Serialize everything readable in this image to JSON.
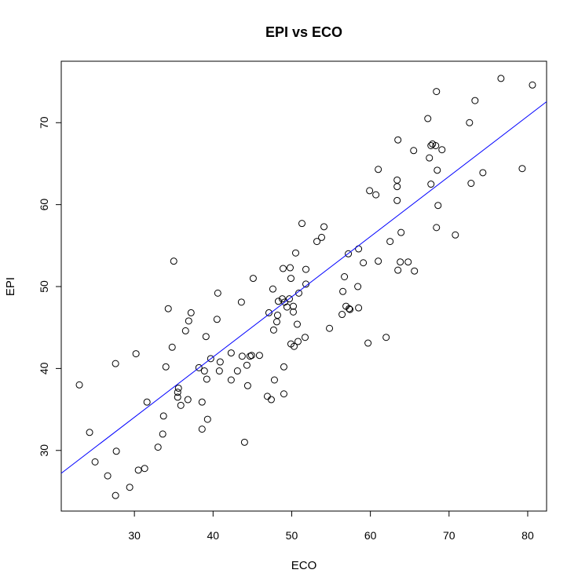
{
  "chart_data": {
    "type": "scatter",
    "title": "EPI vs ECO",
    "xlabel": "ECO",
    "ylabel": "EPI",
    "xlim": [
      20.7,
      82.4
    ],
    "ylim": [
      22.6,
      77.5
    ],
    "x_ticks": [
      30,
      40,
      50,
      60,
      70,
      80
    ],
    "y_ticks": [
      30,
      40,
      50,
      60,
      70
    ],
    "grid": false,
    "points": [
      [
        23.0,
        38.0
      ],
      [
        24.3,
        32.2
      ],
      [
        25.0,
        28.6
      ],
      [
        26.6,
        26.9
      ],
      [
        27.6,
        24.5
      ],
      [
        27.6,
        40.6
      ],
      [
        27.7,
        29.9
      ],
      [
        29.4,
        25.5
      ],
      [
        30.2,
        41.8
      ],
      [
        30.5,
        27.6
      ],
      [
        31.3,
        27.8
      ],
      [
        31.6,
        35.9
      ],
      [
        33.0,
        30.4
      ],
      [
        33.6,
        32.0
      ],
      [
        33.7,
        34.2
      ],
      [
        34.0,
        40.2
      ],
      [
        34.3,
        47.3
      ],
      [
        34.8,
        42.6
      ],
      [
        35.0,
        53.1
      ],
      [
        35.5,
        36.5
      ],
      [
        35.5,
        37.1
      ],
      [
        35.6,
        37.6
      ],
      [
        35.9,
        35.5
      ],
      [
        36.5,
        44.6
      ],
      [
        36.8,
        36.2
      ],
      [
        36.9,
        45.8
      ],
      [
        37.2,
        46.8
      ],
      [
        38.2,
        40.1
      ],
      [
        38.6,
        32.6
      ],
      [
        38.6,
        35.9
      ],
      [
        38.9,
        39.7
      ],
      [
        39.1,
        43.9
      ],
      [
        39.2,
        38.7
      ],
      [
        39.3,
        33.8
      ],
      [
        39.7,
        41.2
      ],
      [
        40.5,
        46.0
      ],
      [
        40.6,
        49.2
      ],
      [
        40.8,
        39.7
      ],
      [
        40.9,
        40.8
      ],
      [
        42.3,
        38.6
      ],
      [
        42.3,
        41.9
      ],
      [
        43.1,
        39.7
      ],
      [
        43.6,
        48.1
      ],
      [
        43.7,
        41.5
      ],
      [
        44.0,
        31.0
      ],
      [
        44.3,
        40.4
      ],
      [
        44.4,
        37.9
      ],
      [
        44.7,
        41.5
      ],
      [
        44.9,
        41.6
      ],
      [
        45.1,
        51.0
      ],
      [
        45.9,
        41.6
      ],
      [
        46.9,
        36.6
      ],
      [
        47.1,
        46.8
      ],
      [
        47.4,
        36.2
      ],
      [
        47.6,
        49.7
      ],
      [
        47.7,
        44.7
      ],
      [
        47.8,
        38.6
      ],
      [
        48.1,
        45.7
      ],
      [
        48.2,
        46.5
      ],
      [
        48.3,
        48.2
      ],
      [
        48.8,
        48.5
      ],
      [
        48.9,
        52.2
      ],
      [
        49.0,
        40.2
      ],
      [
        49.0,
        36.9
      ],
      [
        49.1,
        48.1
      ],
      [
        49.4,
        47.5
      ],
      [
        49.7,
        48.5
      ],
      [
        49.8,
        52.3
      ],
      [
        49.9,
        43.0
      ],
      [
        49.9,
        51.0
      ],
      [
        50.2,
        46.9
      ],
      [
        50.2,
        47.6
      ],
      [
        50.3,
        42.7
      ],
      [
        50.5,
        54.1
      ],
      [
        50.7,
        45.4
      ],
      [
        50.8,
        43.3
      ],
      [
        50.9,
        49.2
      ],
      [
        51.3,
        57.7
      ],
      [
        51.7,
        43.8
      ],
      [
        51.8,
        52.1
      ],
      [
        51.8,
        50.3
      ],
      [
        53.2,
        55.5
      ],
      [
        53.8,
        56.0
      ],
      [
        54.1,
        57.3
      ],
      [
        54.8,
        44.9
      ],
      [
        56.4,
        46.6
      ],
      [
        56.5,
        49.4
      ],
      [
        56.7,
        51.2
      ],
      [
        56.9,
        47.6
      ],
      [
        57.2,
        54.0
      ],
      [
        57.3,
        47.3
      ],
      [
        57.4,
        47.2
      ],
      [
        58.4,
        50.0
      ],
      [
        58.5,
        54.6
      ],
      [
        58.5,
        47.4
      ],
      [
        59.1,
        52.9
      ],
      [
        59.7,
        43.1
      ],
      [
        59.9,
        61.7
      ],
      [
        60.7,
        61.2
      ],
      [
        61.0,
        64.3
      ],
      [
        61.0,
        53.1
      ],
      [
        62.0,
        43.8
      ],
      [
        62.5,
        55.5
      ],
      [
        63.4,
        63.0
      ],
      [
        63.4,
        62.2
      ],
      [
        63.4,
        60.5
      ],
      [
        63.5,
        67.9
      ],
      [
        63.5,
        52.0
      ],
      [
        63.8,
        53.0
      ],
      [
        63.9,
        56.6
      ],
      [
        64.8,
        53.0
      ],
      [
        65.5,
        66.6
      ],
      [
        65.6,
        51.9
      ],
      [
        67.3,
        70.5
      ],
      [
        67.5,
        65.7
      ],
      [
        67.7,
        62.5
      ],
      [
        67.7,
        67.2
      ],
      [
        67.9,
        67.4
      ],
      [
        68.3,
        67.2
      ],
      [
        68.4,
        73.8
      ],
      [
        68.4,
        57.2
      ],
      [
        68.5,
        64.2
      ],
      [
        68.6,
        59.9
      ],
      [
        69.1,
        66.7
      ],
      [
        72.6,
        70.0
      ],
      [
        72.8,
        62.6
      ],
      [
        73.3,
        72.7
      ],
      [
        70.8,
        56.3
      ],
      [
        74.3,
        63.9
      ],
      [
        76.6,
        75.4
      ],
      [
        79.3,
        64.4
      ],
      [
        80.6,
        74.6
      ]
    ],
    "regression_line": {
      "intercept": 12.0,
      "slope": 0.735,
      "color": "#0000ff"
    },
    "point_color": "#000000"
  }
}
